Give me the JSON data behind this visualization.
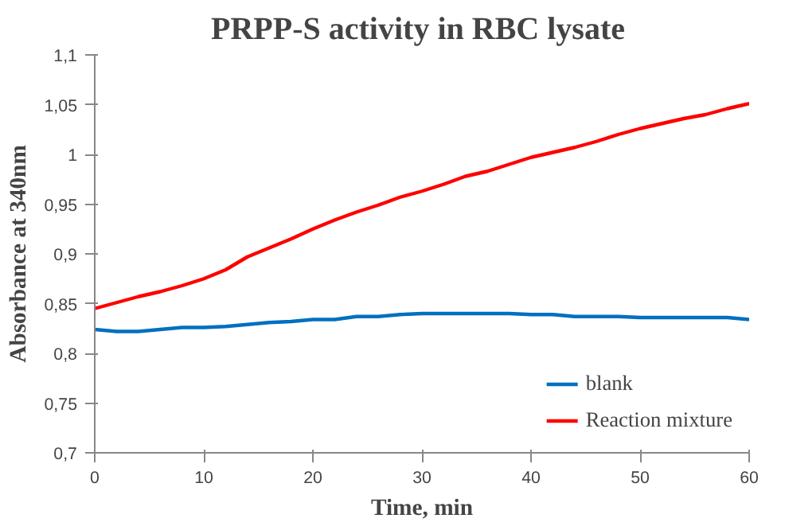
{
  "chart_data": {
    "type": "line",
    "title": "PRPP-S activity  in RBC lysate",
    "xlabel": "Time, min",
    "ylabel": "Absorbance at 340nm",
    "x": [
      0,
      2,
      4,
      6,
      8,
      10,
      12,
      14,
      16,
      18,
      20,
      22,
      24,
      26,
      28,
      30,
      32,
      34,
      36,
      38,
      40,
      42,
      44,
      46,
      48,
      50,
      52,
      54,
      56,
      58,
      60
    ],
    "series": [
      {
        "name": "blank",
        "color": "#0070c0",
        "values": [
          0.824,
          0.822,
          0.822,
          0.824,
          0.826,
          0.826,
          0.827,
          0.829,
          0.831,
          0.832,
          0.834,
          0.834,
          0.837,
          0.837,
          0.839,
          0.84,
          0.84,
          0.84,
          0.84,
          0.84,
          0.839,
          0.839,
          0.837,
          0.837,
          0.837,
          0.836,
          0.836,
          0.836,
          0.836,
          0.836,
          0.834
        ]
      },
      {
        "name": "Reaction mixture",
        "color": "#ff0000",
        "values": [
          0.845,
          0.851,
          0.857,
          0.862,
          0.868,
          0.875,
          0.884,
          0.897,
          0.906,
          0.915,
          0.925,
          0.934,
          0.942,
          0.949,
          0.957,
          0.963,
          0.97,
          0.978,
          0.983,
          0.99,
          0.997,
          1.002,
          1.007,
          1.013,
          1.02,
          1.026,
          1.031,
          1.036,
          1.04,
          1.046,
          1.051
        ]
      }
    ],
    "xlim": [
      0,
      60
    ],
    "xticks": [
      0,
      10,
      20,
      30,
      40,
      50,
      60
    ],
    "ylim": [
      0.7,
      1.1
    ],
    "yticks": [
      {
        "value": 0.7,
        "label": "0,7"
      },
      {
        "value": 0.75,
        "label": "0,75"
      },
      {
        "value": 0.8,
        "label": "0,8"
      },
      {
        "value": 0.85,
        "label": "0,85"
      },
      {
        "value": 0.9,
        "label": "0,9"
      },
      {
        "value": 0.95,
        "label": "0,95"
      },
      {
        "value": 1,
        "label": "1"
      },
      {
        "value": 1.05,
        "label": "1,05"
      },
      {
        "value": 1.1,
        "label": "1,1"
      }
    ],
    "grid": false,
    "legend": "bottom right",
    "marker": "none",
    "line_style": "solid"
  }
}
